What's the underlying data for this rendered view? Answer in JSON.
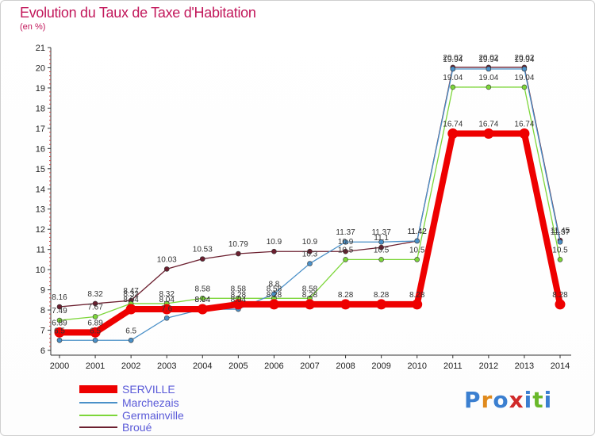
{
  "chart_data": {
    "type": "line",
    "title": "Evolution du Taux de Taxe d'Habitation",
    "subtitle": "(en %)",
    "xlabel": "",
    "ylabel": "",
    "ylim": [
      6,
      21
    ],
    "x": [
      "2000",
      "2001",
      "2002",
      "2003",
      "2004",
      "2005",
      "2006",
      "2007",
      "2008",
      "2009",
      "2010",
      "2011",
      "2012",
      "2013",
      "2014"
    ],
    "y_ticks": [
      "6",
      "7",
      "8",
      "9",
      "10",
      "11",
      "12",
      "13",
      "14",
      "15",
      "16",
      "17",
      "18",
      "19",
      "20",
      "21"
    ],
    "grid": false,
    "legend_position": "bottom-left",
    "series": [
      {
        "name": "Broué",
        "color": "#6b1f2f",
        "values": [
          8.16,
          8.32,
          8.47,
          10.03,
          10.53,
          10.79,
          10.9,
          10.9,
          10.9,
          11.1,
          11.42,
          20.02,
          20.02,
          20.02,
          11.45
        ],
        "labels": [
          "8.16",
          "8.32",
          "8.47",
          "10.03",
          "10.53",
          "10.79",
          "10.9",
          "10.9",
          "10.9",
          "11.1",
          "11.42",
          "20.02",
          "20.02",
          "20.02",
          "11.45"
        ]
      },
      {
        "name": "Germainville",
        "color": "#7dd63a",
        "values": [
          7.49,
          7.67,
          8.32,
          8.32,
          8.58,
          8.58,
          8.58,
          8.58,
          10.5,
          10.5,
          10.5,
          19.04,
          19.04,
          19.04,
          10.5
        ],
        "labels": [
          "7.49",
          "7.67",
          "8.32",
          "8.32",
          "8.58",
          "8.58",
          "8.58",
          "8.58",
          "10.5",
          "10.5",
          "10.5",
          "19.04",
          "19.04",
          "19.04",
          "10.5"
        ]
      },
      {
        "name": "Marchezais",
        "color": "#4a90c8",
        "values": [
          6.5,
          6.5,
          6.5,
          7.6,
          8.04,
          8.04,
          8.8,
          10.3,
          11.37,
          11.37,
          11.42,
          19.94,
          19.94,
          19.94,
          11.37
        ],
        "labels": [
          "6.5",
          "6.5",
          "6.5",
          "7.6",
          "8.04",
          "8.04",
          "8.8",
          "10.3",
          "11.37",
          "11.37",
          "11.42",
          "19.94",
          "19.94",
          "19.94",
          "11.37"
        ]
      },
      {
        "name": "SERVILLE",
        "color": "#ee0000",
        "values": [
          6.89,
          6.89,
          8.04,
          8.04,
          8.04,
          8.28,
          8.28,
          8.28,
          8.28,
          8.28,
          8.28,
          16.74,
          16.74,
          16.74,
          8.28
        ],
        "labels": [
          "6.89",
          "6.89",
          "8.04",
          "8.04",
          "8.04",
          "8.28",
          "8.28",
          "8.28",
          "8.28",
          "8.28",
          "8.28",
          "16.74",
          "16.74",
          "16.74",
          "8.28"
        ]
      }
    ]
  },
  "legend": [
    {
      "name": "SERVILLE",
      "color": "#ee0000",
      "thick": true
    },
    {
      "name": "Marchezais",
      "color": "#4a90c8",
      "thick": false
    },
    {
      "name": "Germainville",
      "color": "#7dd63a",
      "thick": false
    },
    {
      "name": "Broué",
      "color": "#6b1f2f",
      "thick": false
    }
  ],
  "logo": {
    "text": "Proxiti"
  }
}
